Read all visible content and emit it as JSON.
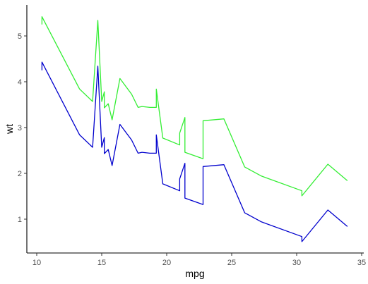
{
  "chart_data": {
    "type": "line",
    "title": "",
    "xlabel": "mpg",
    "ylabel": "wt",
    "xlim": [
      10,
      35
    ],
    "ylim": [
      0.5,
      5.5
    ],
    "xticks": [
      10,
      15,
      20,
      25,
      30,
      35
    ],
    "yticks": [
      1,
      2,
      3,
      4,
      5
    ],
    "grid": false,
    "legend": "none",
    "series": [
      {
        "color": "#0000CD",
        "points": [
          [
            10.4,
            4.25
          ],
          [
            10.4,
            4.43
          ],
          [
            13.3,
            2.84
          ],
          [
            14.3,
            2.57
          ],
          [
            14.7,
            4.34
          ],
          [
            15.0,
            2.57
          ],
          [
            15.2,
            2.78
          ],
          [
            15.2,
            2.43
          ],
          [
            15.5,
            2.52
          ],
          [
            15.8,
            2.17
          ],
          [
            16.4,
            3.07
          ],
          [
            17.3,
            2.73
          ],
          [
            17.8,
            2.44
          ],
          [
            18.1,
            2.46
          ],
          [
            18.7,
            2.44
          ],
          [
            19.2,
            2.44
          ],
          [
            19.2,
            2.84
          ],
          [
            19.7,
            1.77
          ],
          [
            21.0,
            1.62
          ],
          [
            21.0,
            1.88
          ],
          [
            21.4,
            2.22
          ],
          [
            21.4,
            1.46
          ],
          [
            22.8,
            1.32
          ],
          [
            22.8,
            2.15
          ],
          [
            24.4,
            2.19
          ],
          [
            26.0,
            1.14
          ],
          [
            27.3,
            0.94
          ],
          [
            30.4,
            0.62
          ],
          [
            30.4,
            0.51
          ],
          [
            32.4,
            1.2
          ],
          [
            33.9,
            0.84
          ]
        ]
      },
      {
        "color": "#33EE33",
        "points": [
          [
            10.4,
            5.25
          ],
          [
            10.4,
            5.42
          ],
          [
            13.3,
            3.84
          ],
          [
            14.3,
            3.57
          ],
          [
            14.7,
            5.34
          ],
          [
            15.0,
            3.57
          ],
          [
            15.2,
            3.78
          ],
          [
            15.2,
            3.43
          ],
          [
            15.5,
            3.52
          ],
          [
            15.8,
            3.17
          ],
          [
            16.4,
            4.07
          ],
          [
            17.3,
            3.73
          ],
          [
            17.8,
            3.44
          ],
          [
            18.1,
            3.46
          ],
          [
            18.7,
            3.44
          ],
          [
            19.2,
            3.44
          ],
          [
            19.2,
            3.84
          ],
          [
            19.7,
            2.77
          ],
          [
            21.0,
            2.62
          ],
          [
            21.0,
            2.88
          ],
          [
            21.4,
            3.22
          ],
          [
            21.4,
            2.46
          ],
          [
            22.8,
            2.32
          ],
          [
            22.8,
            3.15
          ],
          [
            24.4,
            3.19
          ],
          [
            26.0,
            2.14
          ],
          [
            27.3,
            1.94
          ],
          [
            30.4,
            1.62
          ],
          [
            30.4,
            1.51
          ],
          [
            32.4,
            2.2
          ],
          [
            33.9,
            1.84
          ]
        ]
      }
    ]
  }
}
